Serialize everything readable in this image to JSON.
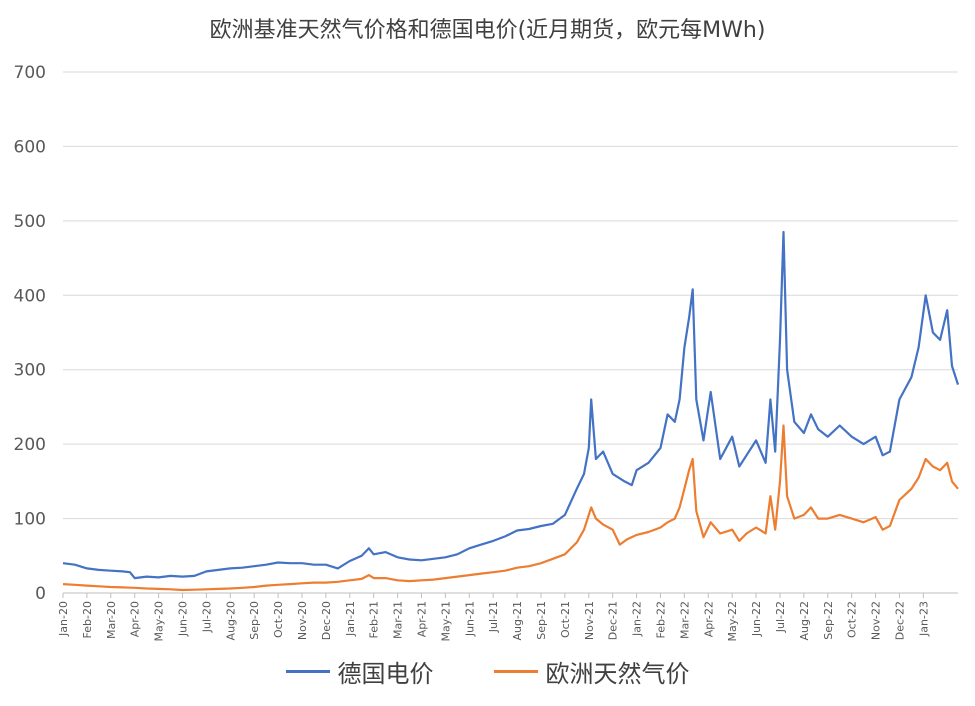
{
  "chart_data": {
    "type": "line",
    "title": "欧洲基准天然气价格和德国电价(近月期货，欧元每MWh)",
    "xlabel": "",
    "ylabel": "",
    "ylim": [
      0,
      700
    ],
    "yticks": [
      0,
      100,
      200,
      300,
      400,
      500,
      600,
      700
    ],
    "grid": true,
    "legend_position": "bottom",
    "x_tick_labels": [
      "Jan-20",
      "Feb-20",
      "Mar-20",
      "Apr-20",
      "May-20",
      "Jun-20",
      "Jul-20",
      "Aug-20",
      "Sep-20",
      "Oct-20",
      "Nov-20",
      "Dec-20",
      "Jan-21",
      "Feb-21",
      "Mar-21",
      "Apr-21",
      "May-21",
      "Jun-21",
      "Jul-21",
      "Aug-21",
      "Sep-21",
      "Oct-21",
      "Nov-21",
      "Dec-21",
      "Jan-22",
      "Feb-22",
      "Mar-22",
      "Apr-22",
      "May-22",
      "Jun-22",
      "Jul-22",
      "Aug-22",
      "Sep-22",
      "Oct-22",
      "Nov-22",
      "Dec-22",
      "Jan-23"
    ],
    "x_range": [
      0,
      37.45
    ],
    "series": [
      {
        "name": "德国电价",
        "color": "#4472c4",
        "points": [
          [
            0,
            40
          ],
          [
            0.5,
            38
          ],
          [
            1,
            33
          ],
          [
            1.5,
            31
          ],
          [
            2,
            30
          ],
          [
            2.5,
            29
          ],
          [
            2.8,
            28
          ],
          [
            3,
            20
          ],
          [
            3.5,
            22
          ],
          [
            4,
            21
          ],
          [
            4.5,
            23
          ],
          [
            5,
            22
          ],
          [
            5.5,
            23
          ],
          [
            6,
            29
          ],
          [
            6.5,
            31
          ],
          [
            7,
            33
          ],
          [
            7.5,
            34
          ],
          [
            8,
            36
          ],
          [
            8.5,
            38
          ],
          [
            9,
            41
          ],
          [
            9.5,
            40
          ],
          [
            10,
            40
          ],
          [
            10.5,
            38
          ],
          [
            11,
            38
          ],
          [
            11.5,
            33
          ],
          [
            12,
            43
          ],
          [
            12.5,
            50
          ],
          [
            12.8,
            60
          ],
          [
            13,
            52
          ],
          [
            13.5,
            55
          ],
          [
            14,
            48
          ],
          [
            14.5,
            45
          ],
          [
            15,
            44
          ],
          [
            15.5,
            46
          ],
          [
            16,
            48
          ],
          [
            16.5,
            52
          ],
          [
            17,
            60
          ],
          [
            17.5,
            65
          ],
          [
            18,
            70
          ],
          [
            18.5,
            76
          ],
          [
            19,
            84
          ],
          [
            19.5,
            86
          ],
          [
            20,
            90
          ],
          [
            20.5,
            93
          ],
          [
            21,
            105
          ],
          [
            21.5,
            140
          ],
          [
            21.8,
            160
          ],
          [
            22,
            195
          ],
          [
            22.1,
            260
          ],
          [
            22.3,
            180
          ],
          [
            22.6,
            190
          ],
          [
            23,
            160
          ],
          [
            23.5,
            150
          ],
          [
            23.8,
            145
          ],
          [
            24,
            165
          ],
          [
            24.5,
            175
          ],
          [
            25,
            195
          ],
          [
            25.3,
            240
          ],
          [
            25.6,
            230
          ],
          [
            25.8,
            260
          ],
          [
            26,
            330
          ],
          [
            26.2,
            370
          ],
          [
            26.35,
            408
          ],
          [
            26.5,
            260
          ],
          [
            26.8,
            205
          ],
          [
            27.1,
            270
          ],
          [
            27.5,
            180
          ],
          [
            28,
            210
          ],
          [
            28.3,
            170
          ],
          [
            28.6,
            185
          ],
          [
            29,
            205
          ],
          [
            29.4,
            175
          ],
          [
            29.6,
            260
          ],
          [
            29.8,
            190
          ],
          [
            30,
            340
          ],
          [
            30.15,
            485
          ],
          [
            30.3,
            300
          ],
          [
            30.6,
            230
          ],
          [
            31,
            215
          ],
          [
            31.3,
            240
          ],
          [
            31.6,
            220
          ],
          [
            32,
            210
          ],
          [
            32.5,
            225
          ],
          [
            33,
            210
          ],
          [
            33.5,
            200
          ],
          [
            34,
            210
          ],
          [
            34.3,
            185
          ],
          [
            34.6,
            190
          ],
          [
            35,
            260
          ],
          [
            35.5,
            290
          ],
          [
            35.8,
            330
          ],
          [
            36.1,
            400
          ],
          [
            36.4,
            350
          ],
          [
            36.7,
            340
          ],
          [
            37,
            380
          ],
          [
            37.2,
            305
          ],
          [
            37.45,
            280
          ]
        ]
      },
      {
        "name": "欧洲天然气价",
        "color": "#ed7d31",
        "points": [
          [
            0,
            12
          ],
          [
            0.5,
            11
          ],
          [
            1,
            10
          ],
          [
            1.5,
            9
          ],
          [
            2,
            8
          ],
          [
            2.5,
            7.5
          ],
          [
            3,
            7
          ],
          [
            3.5,
            6
          ],
          [
            4,
            5.5
          ],
          [
            4.5,
            5
          ],
          [
            5,
            4
          ],
          [
            5.5,
            4.5
          ],
          [
            6,
            5
          ],
          [
            6.5,
            5.5
          ],
          [
            7,
            6
          ],
          [
            7.5,
            7
          ],
          [
            8,
            8
          ],
          [
            8.5,
            10
          ],
          [
            9,
            11
          ],
          [
            9.5,
            12
          ],
          [
            10,
            13
          ],
          [
            10.5,
            14
          ],
          [
            11,
            14
          ],
          [
            11.5,
            15
          ],
          [
            12,
            17
          ],
          [
            12.5,
            19
          ],
          [
            12.8,
            24
          ],
          [
            13,
            20
          ],
          [
            13.5,
            20
          ],
          [
            14,
            17
          ],
          [
            14.5,
            16
          ],
          [
            15,
            17
          ],
          [
            15.5,
            18
          ],
          [
            16,
            20
          ],
          [
            16.5,
            22
          ],
          [
            17,
            24
          ],
          [
            17.5,
            26
          ],
          [
            18,
            28
          ],
          [
            18.5,
            30
          ],
          [
            19,
            34
          ],
          [
            19.5,
            36
          ],
          [
            20,
            40
          ],
          [
            20.5,
            46
          ],
          [
            21,
            52
          ],
          [
            21.5,
            68
          ],
          [
            21.8,
            85
          ],
          [
            22,
            105
          ],
          [
            22.1,
            115
          ],
          [
            22.3,
            100
          ],
          [
            22.6,
            92
          ],
          [
            23,
            85
          ],
          [
            23.3,
            65
          ],
          [
            23.6,
            72
          ],
          [
            24,
            78
          ],
          [
            24.5,
            82
          ],
          [
            25,
            88
          ],
          [
            25.3,
            95
          ],
          [
            25.6,
            100
          ],
          [
            25.8,
            115
          ],
          [
            26,
            140
          ],
          [
            26.2,
            165
          ],
          [
            26.35,
            180
          ],
          [
            26.5,
            110
          ],
          [
            26.8,
            75
          ],
          [
            27.1,
            95
          ],
          [
            27.5,
            80
          ],
          [
            28,
            85
          ],
          [
            28.3,
            70
          ],
          [
            28.6,
            80
          ],
          [
            29,
            88
          ],
          [
            29.4,
            80
          ],
          [
            29.6,
            130
          ],
          [
            29.8,
            85
          ],
          [
            30,
            150
          ],
          [
            30.15,
            225
          ],
          [
            30.3,
            130
          ],
          [
            30.6,
            100
          ],
          [
            31,
            105
          ],
          [
            31.3,
            115
          ],
          [
            31.6,
            100
          ],
          [
            32,
            100
          ],
          [
            32.5,
            105
          ],
          [
            33,
            100
          ],
          [
            33.5,
            95
          ],
          [
            34,
            102
          ],
          [
            34.3,
            85
          ],
          [
            34.6,
            90
          ],
          [
            35,
            125
          ],
          [
            35.5,
            140
          ],
          [
            35.8,
            155
          ],
          [
            36.1,
            180
          ],
          [
            36.4,
            170
          ],
          [
            36.7,
            165
          ],
          [
            37,
            175
          ],
          [
            37.2,
            150
          ],
          [
            37.45,
            140
          ]
        ]
      }
    ]
  }
}
